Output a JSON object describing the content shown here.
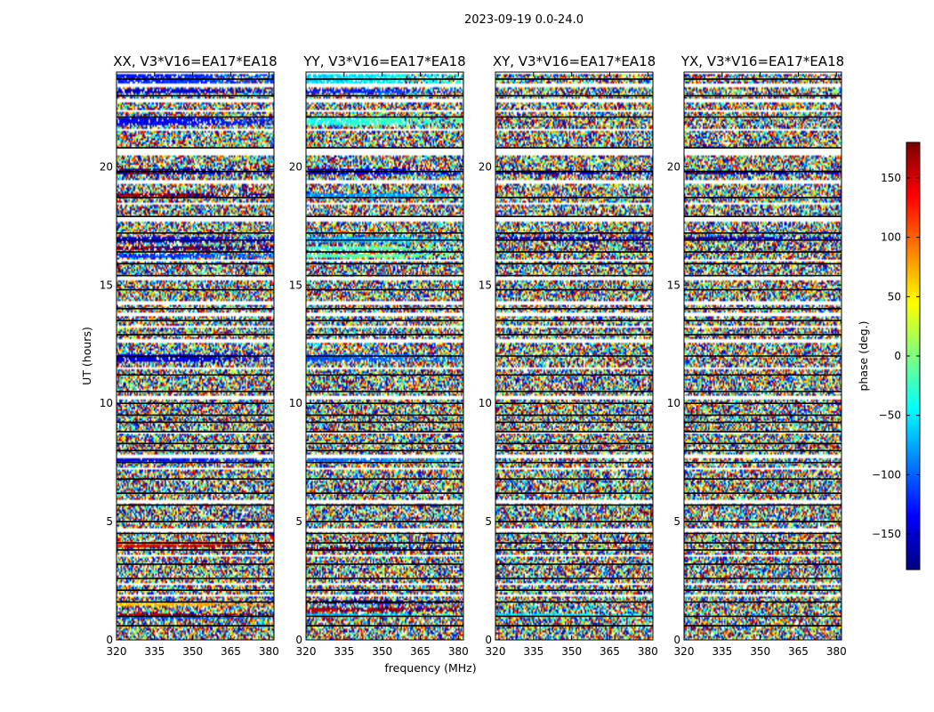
{
  "suptitle": "2023-09-19 0.0-24.0",
  "chart_data": {
    "type": "heatmap",
    "panels": [
      {
        "title": "XX, V3*V16=EA17*EA18",
        "seed": 11,
        "coherent_bands": [
          [
            23.5,
            23.9,
            -130
          ],
          [
            23.1,
            23.3,
            -160
          ],
          [
            21.8,
            22.1,
            -145
          ],
          [
            19.7,
            19.9,
            -175
          ],
          [
            18.7,
            18.9,
            165
          ],
          [
            16.8,
            17.0,
            -160
          ],
          [
            16.5,
            16.65,
            170
          ],
          [
            16.15,
            16.3,
            -120
          ],
          [
            11.8,
            12.05,
            -155
          ],
          [
            7.5,
            7.65,
            -140
          ],
          [
            4.0,
            4.15,
            110
          ],
          [
            3.9,
            4.0,
            150
          ],
          [
            1.45,
            1.6,
            60
          ],
          [
            0.95,
            1.1,
            160
          ],
          [
            0.85,
            0.95,
            -110
          ]
        ]
      },
      {
        "title": "YY, V3*V16=EA17*EA18",
        "seed": 23,
        "coherent_bands": [
          [
            23.5,
            23.9,
            -60
          ],
          [
            23.1,
            23.3,
            -130
          ],
          [
            21.8,
            22.1,
            -40
          ],
          [
            19.7,
            19.9,
            -160
          ],
          [
            18.7,
            18.9,
            -90
          ],
          [
            16.8,
            17.0,
            -80
          ],
          [
            16.5,
            16.65,
            -30
          ],
          [
            16.15,
            16.3,
            -20
          ],
          [
            11.8,
            12.05,
            -110
          ],
          [
            7.5,
            7.65,
            -100
          ],
          [
            3.8,
            3.95,
            170
          ],
          [
            1.5,
            1.65,
            -170
          ],
          [
            1.2,
            1.35,
            160
          ],
          [
            0.95,
            1.1,
            -70
          ]
        ]
      },
      {
        "title": "XY, V3*V16=EA17*EA18",
        "seed": 37,
        "coherent_bands": [
          [
            19.7,
            19.85,
            -175
          ],
          [
            16.9,
            17.05,
            -170
          ],
          [
            1.0,
            1.1,
            -60
          ]
        ]
      },
      {
        "title": "YX, V3*V16=EA17*EA18",
        "seed": 53,
        "coherent_bands": [
          [
            19.7,
            19.85,
            -175
          ],
          [
            16.9,
            17.05,
            -170
          ]
        ]
      }
    ],
    "x_ticks": [
      320,
      335,
      350,
      365,
      380
    ],
    "xlim": [
      320,
      382
    ],
    "y_ticks": [
      0,
      5,
      10,
      15,
      20
    ],
    "ylim": [
      0,
      24
    ],
    "xlabel": "frequency (MHz)",
    "ylabel": "UT (hours)",
    "gaps_hours": [
      [
        23.95,
        24.0
      ],
      [
        23.4,
        23.5
      ],
      [
        22.7,
        22.9
      ],
      [
        22.3,
        22.4
      ],
      [
        21.5,
        21.6
      ],
      [
        20.5,
        20.8
      ],
      [
        19.3,
        19.4
      ],
      [
        18.4,
        18.5
      ],
      [
        17.7,
        17.9
      ],
      [
        17.5,
        17.55
      ],
      [
        16.0,
        16.1
      ],
      [
        15.2,
        15.35
      ],
      [
        14.2,
        14.3
      ],
      [
        13.7,
        13.8
      ],
      [
        13.2,
        13.3
      ],
      [
        12.6,
        12.7
      ],
      [
        11.4,
        11.5
      ],
      [
        10.2,
        10.3
      ],
      [
        8.7,
        8.8
      ],
      [
        7.7,
        7.8
      ],
      [
        7.2,
        7.3
      ],
      [
        5.8,
        5.9
      ],
      [
        4.6,
        4.7
      ],
      [
        3.5,
        3.6
      ],
      [
        2.3,
        2.4
      ],
      [
        1.8,
        1.9
      ],
      [
        1.4,
        1.45
      ]
    ],
    "line_hours": [
      23.7,
      23.0,
      22.1,
      20.8,
      19.8,
      18.7,
      17.9,
      17.2,
      16.9,
      16.4,
      15.9,
      15.4,
      14.8,
      14.0,
      13.5,
      12.9,
      12.0,
      11.2,
      10.5,
      10.0,
      9.5,
      9.2,
      8.8,
      8.3,
      8.0,
      7.5,
      6.8,
      6.2,
      5.7,
      5.0,
      4.5,
      4.1,
      3.8,
      3.2,
      2.6,
      2.1,
      1.6,
      1.0,
      0.6
    ],
    "colorbar": {
      "label": "phase (deg.)",
      "range": [
        -180,
        180
      ],
      "ticks": [
        150,
        100,
        50,
        0,
        -50,
        -100,
        -150
      ],
      "tick_labels": [
        "150",
        "100",
        "50",
        "0",
        "−50",
        "−100",
        "−150"
      ],
      "colormap": "jet"
    }
  }
}
